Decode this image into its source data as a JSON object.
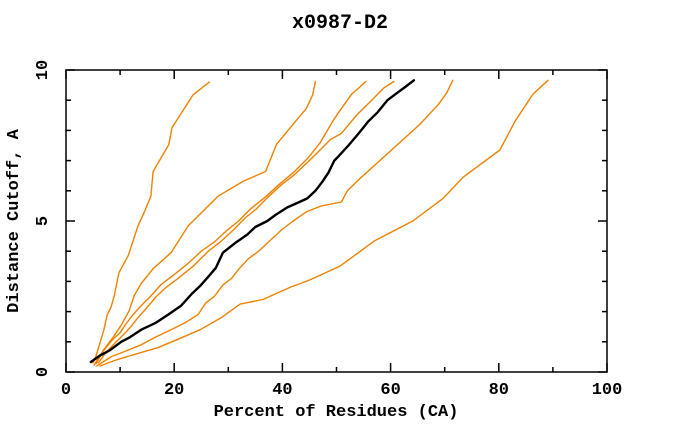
{
  "page": {
    "background": "#ffffff"
  },
  "chart_data": {
    "type": "line",
    "title": "x0987-D2",
    "xlabel": "Percent of Residues (CA)",
    "ylabel": "Distance Cutoff, A",
    "xlim": [
      0,
      100
    ],
    "ylim": [
      0,
      10
    ],
    "x_major_ticks": [
      0,
      20,
      40,
      60,
      80,
      100
    ],
    "x_minor_ticks": [
      10,
      30,
      50,
      70,
      90
    ],
    "y_major_ticks": [
      0,
      5,
      10
    ],
    "y_minor_ticks": [
      1,
      2,
      3,
      4,
      6,
      7,
      8,
      9
    ],
    "grid": false,
    "legend_position": "none",
    "axis_color": "#000000",
    "series": [
      {
        "name": "curve-1",
        "color": "#ef8200",
        "width": 1.4,
        "points": [
          [
            5.0,
            0.3
          ],
          [
            5.6,
            0.56
          ],
          [
            6.5,
            1.1
          ],
          [
            7.0,
            1.4
          ],
          [
            7.6,
            1.88
          ],
          [
            8.3,
            2.14
          ],
          [
            8.9,
            2.5
          ],
          [
            9.8,
            3.29
          ],
          [
            11.5,
            3.85
          ],
          [
            13.3,
            4.84
          ],
          [
            14.5,
            5.3
          ],
          [
            15.7,
            5.82
          ],
          [
            16.1,
            6.64
          ],
          [
            19.0,
            7.53
          ],
          [
            19.6,
            8.09
          ],
          [
            23.5,
            9.18
          ],
          [
            26.5,
            9.6
          ]
        ]
      },
      {
        "name": "curve-2",
        "color": "#ef8200",
        "width": 1.4,
        "points": [
          [
            5.2,
            0.23
          ],
          [
            6.9,
            0.72
          ],
          [
            8.7,
            1.15
          ],
          [
            10.2,
            1.55
          ],
          [
            11.7,
            2.04
          ],
          [
            12.6,
            2.53
          ],
          [
            13.9,
            2.93
          ],
          [
            16.1,
            3.42
          ],
          [
            19.4,
            3.95
          ],
          [
            22.6,
            4.84
          ],
          [
            28.1,
            5.82
          ],
          [
            32.8,
            6.32
          ],
          [
            36.9,
            6.64
          ],
          [
            38.9,
            7.53
          ],
          [
            41.9,
            8.19
          ],
          [
            44.4,
            8.72
          ],
          [
            45.6,
            9.18
          ],
          [
            46.1,
            9.62
          ]
        ]
      },
      {
        "name": "curve-3",
        "color": "#ef8200",
        "width": 1.4,
        "points": [
          [
            5.6,
            0.28
          ],
          [
            6.9,
            0.7
          ],
          [
            8.5,
            1.05
          ],
          [
            10.0,
            1.3
          ],
          [
            11.1,
            1.6
          ],
          [
            12.4,
            1.9
          ],
          [
            13.9,
            2.2
          ],
          [
            15.6,
            2.5
          ],
          [
            17.6,
            2.9
          ],
          [
            19.8,
            3.2
          ],
          [
            22.6,
            3.6
          ],
          [
            25.0,
            4.0
          ],
          [
            27.4,
            4.3
          ],
          [
            29.8,
            4.7
          ],
          [
            31.9,
            5.0
          ],
          [
            34.1,
            5.4
          ],
          [
            36.9,
            5.8
          ],
          [
            39.3,
            6.2
          ],
          [
            42.0,
            6.6
          ],
          [
            44.8,
            7.1
          ],
          [
            47.0,
            7.6
          ],
          [
            49.3,
            8.3
          ],
          [
            50.4,
            8.6
          ],
          [
            52.8,
            9.2
          ],
          [
            54.1,
            9.4
          ],
          [
            55.4,
            9.62
          ]
        ]
      },
      {
        "name": "curve-4",
        "color": "#ef8200",
        "width": 1.4,
        "points": [
          [
            6.0,
            0.3
          ],
          [
            7.4,
            0.65
          ],
          [
            9.3,
            1.0
          ],
          [
            10.7,
            1.25
          ],
          [
            12.0,
            1.5
          ],
          [
            13.3,
            1.8
          ],
          [
            14.8,
            2.1
          ],
          [
            16.7,
            2.5
          ],
          [
            18.5,
            2.8
          ],
          [
            20.7,
            3.1
          ],
          [
            23.5,
            3.5
          ],
          [
            26.3,
            4.0
          ],
          [
            28.5,
            4.3
          ],
          [
            30.9,
            4.7
          ],
          [
            33.1,
            5.1
          ],
          [
            35.2,
            5.4
          ],
          [
            37.4,
            5.8
          ],
          [
            39.8,
            6.2
          ],
          [
            42.0,
            6.5
          ],
          [
            44.4,
            6.9
          ],
          [
            46.7,
            7.3
          ],
          [
            48.9,
            7.7
          ],
          [
            50.9,
            7.9
          ],
          [
            53.7,
            8.5
          ],
          [
            56.5,
            9.0
          ],
          [
            58.7,
            9.4
          ],
          [
            60.6,
            9.62
          ]
        ]
      },
      {
        "name": "curve-black",
        "color": "#000000",
        "width": 2.4,
        "points": [
          [
            4.6,
            0.33
          ],
          [
            6.3,
            0.55
          ],
          [
            8.1,
            0.72
          ],
          [
            10.2,
            1.0
          ],
          [
            11.8,
            1.15
          ],
          [
            13.9,
            1.4
          ],
          [
            16.5,
            1.62
          ],
          [
            18.9,
            1.9
          ],
          [
            21.3,
            2.2
          ],
          [
            23.3,
            2.6
          ],
          [
            24.8,
            2.85
          ],
          [
            26.5,
            3.2
          ],
          [
            27.7,
            3.45
          ],
          [
            29.0,
            3.95
          ],
          [
            31.5,
            4.3
          ],
          [
            33.5,
            4.55
          ],
          [
            35.0,
            4.8
          ],
          [
            37.2,
            5.0
          ],
          [
            38.7,
            5.2
          ],
          [
            40.9,
            5.45
          ],
          [
            42.8,
            5.6
          ],
          [
            44.6,
            5.75
          ],
          [
            46.1,
            6.0
          ],
          [
            47.4,
            6.3
          ],
          [
            48.5,
            6.6
          ],
          [
            49.6,
            7.0
          ],
          [
            50.4,
            7.15
          ],
          [
            52.2,
            7.5
          ],
          [
            54.1,
            7.9
          ],
          [
            55.9,
            8.3
          ],
          [
            57.6,
            8.6
          ],
          [
            59.4,
            9.0
          ],
          [
            61.3,
            9.25
          ],
          [
            62.8,
            9.45
          ],
          [
            64.3,
            9.66
          ]
        ]
      },
      {
        "name": "curve-5",
        "color": "#ef8200",
        "width": 1.4,
        "points": [
          [
            5.7,
            0.2
          ],
          [
            8.3,
            0.5
          ],
          [
            11.1,
            0.7
          ],
          [
            13.9,
            0.9
          ],
          [
            16.5,
            1.15
          ],
          [
            19.4,
            1.4
          ],
          [
            22.2,
            1.65
          ],
          [
            24.4,
            1.9
          ],
          [
            25.9,
            2.3
          ],
          [
            27.4,
            2.5
          ],
          [
            29.1,
            2.9
          ],
          [
            30.6,
            3.1
          ],
          [
            31.9,
            3.4
          ],
          [
            33.7,
            3.75
          ],
          [
            35.6,
            4.0
          ],
          [
            38.0,
            4.4
          ],
          [
            39.8,
            4.7
          ],
          [
            42.0,
            5.0
          ],
          [
            44.4,
            5.3
          ],
          [
            47.2,
            5.5
          ],
          [
            50.9,
            5.63
          ],
          [
            52.0,
            6.0
          ],
          [
            54.3,
            6.4
          ],
          [
            58.0,
            7.0
          ],
          [
            61.7,
            7.6
          ],
          [
            65.4,
            8.2
          ],
          [
            68.8,
            8.85
          ],
          [
            70.4,
            9.25
          ],
          [
            71.5,
            9.66
          ]
        ]
      },
      {
        "name": "curve-6",
        "color": "#ef8200",
        "width": 1.4,
        "points": [
          [
            6.3,
            0.2
          ],
          [
            9.3,
            0.4
          ],
          [
            13.0,
            0.6
          ],
          [
            16.9,
            0.8
          ],
          [
            20.9,
            1.1
          ],
          [
            24.8,
            1.4
          ],
          [
            28.7,
            1.8
          ],
          [
            32.2,
            2.25
          ],
          [
            36.4,
            2.4
          ],
          [
            41.4,
            2.8
          ],
          [
            45.1,
            3.05
          ],
          [
            50.6,
            3.5
          ],
          [
            57.1,
            4.35
          ],
          [
            64.1,
            5.0
          ],
          [
            69.7,
            5.75
          ],
          [
            73.4,
            6.45
          ],
          [
            80.2,
            7.35
          ],
          [
            83.0,
            8.3
          ],
          [
            86.3,
            9.2
          ],
          [
            89.1,
            9.66
          ]
        ]
      }
    ]
  }
}
